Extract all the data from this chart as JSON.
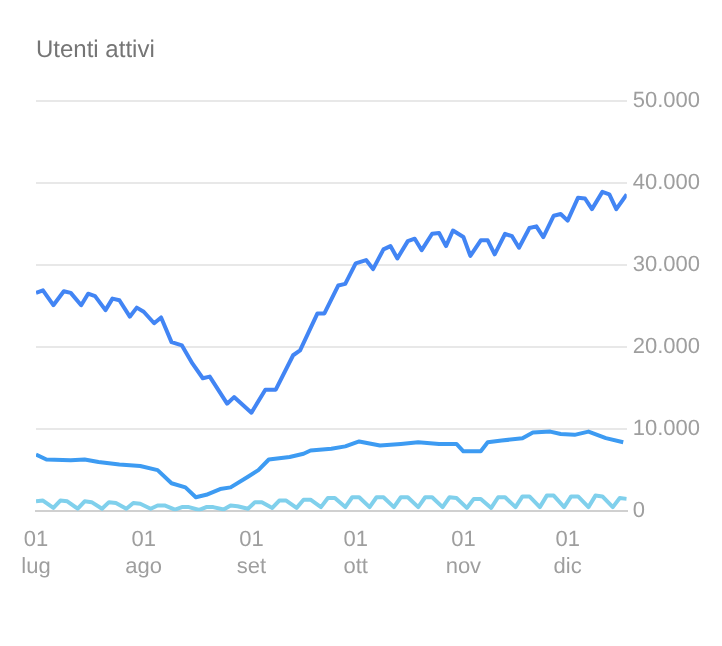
{
  "chart_data": {
    "type": "line",
    "title": "Utenti attivi",
    "xlim": [
      "--07-01",
      "--12-18"
    ],
    "xticks": [
      {
        "value": "--07-01",
        "label": "01\nlug"
      },
      {
        "value": "--08-01",
        "label": "01\nago"
      },
      {
        "value": "--09-01",
        "label": "01\nset"
      },
      {
        "value": "--10-01",
        "label": "01\nott"
      },
      {
        "value": "--11-01",
        "label": "01\nnov"
      },
      {
        "value": "--12-01",
        "label": "01\ndic"
      }
    ],
    "ylim": [
      0,
      50000
    ],
    "yticks": [
      {
        "value": 0,
        "label": "0"
      },
      {
        "value": 10000,
        "label": "10.000"
      },
      {
        "value": 20000,
        "label": "20.000"
      },
      {
        "value": 30000,
        "label": "30.000"
      },
      {
        "value": 40000,
        "label": "40.000"
      },
      {
        "value": 50000,
        "label": "50.000"
      }
    ],
    "grid": "y",
    "legend": false,
    "marker": "none",
    "line_style": "solid",
    "series": [
      {
        "color": "#4285f4",
        "x": [
          "--07-01",
          "--07-03",
          "--07-06",
          "--07-09",
          "--07-11",
          "--07-14",
          "--07-16",
          "--07-18",
          "--07-21",
          "--07-23",
          "--07-25",
          "--07-28",
          "--07-30",
          "--08-01",
          "--08-04",
          "--08-06",
          "--08-09",
          "--08-12",
          "--08-15",
          "--08-18",
          "--08-20",
          "--08-25",
          "--08-27",
          "--09-01",
          "--09-05",
          "--09-08",
          "--09-13",
          "--09-15",
          "--09-20",
          "--09-22",
          "--09-26",
          "--09-28",
          "--10-01",
          "--10-04",
          "--10-06",
          "--10-09",
          "--10-11",
          "--10-13",
          "--10-16",
          "--10-18",
          "--10-20",
          "--10-23",
          "--10-25",
          "--10-27",
          "--10-29",
          "--11-01",
          "--11-03",
          "--11-06",
          "--11-08",
          "--11-10",
          "--11-13",
          "--11-15",
          "--11-17",
          "--11-20",
          "--11-22",
          "--11-24",
          "--11-27",
          "--11-29",
          "--12-01",
          "--12-04",
          "--12-06",
          "--12-08",
          "--12-11",
          "--12-13",
          "--12-15",
          "--12-18"
        ],
        "values": [
          26600,
          26900,
          25100,
          26800,
          26600,
          25100,
          26500,
          26200,
          24500,
          25900,
          25700,
          23700,
          24800,
          24300,
          22900,
          23600,
          20600,
          20200,
          18000,
          16200,
          16400,
          13100,
          13900,
          12000,
          14800,
          14800,
          19000,
          19600,
          24100,
          24100,
          27500,
          27700,
          30200,
          30600,
          29500,
          31900,
          32300,
          30800,
          32900,
          33200,
          31800,
          33800,
          33900,
          32300,
          34200,
          33400,
          31100,
          33000,
          33000,
          31300,
          33800,
          33500,
          32100,
          34500,
          34700,
          33400,
          36000,
          36200,
          35400,
          38200,
          38100,
          36800,
          38900,
          38600,
          36800,
          38600
        ]
      },
      {
        "color": "#3d9bf2",
        "x": [
          "--07-01",
          "--07-04",
          "--07-11",
          "--07-15",
          "--07-19",
          "--07-25",
          "--07-31",
          "--08-05",
          "--08-09",
          "--08-13",
          "--08-16",
          "--08-19",
          "--08-23",
          "--08-26",
          "--08-31",
          "--09-03",
          "--09-06",
          "--09-12",
          "--09-16",
          "--09-18",
          "--09-24",
          "--09-28",
          "--10-02",
          "--10-08",
          "--10-14",
          "--10-19",
          "--10-25",
          "--10-30",
          "--11-01",
          "--11-06",
          "--11-08",
          "--11-12",
          "--11-18",
          "--11-21",
          "--11-26",
          "--11-29",
          "--12-03",
          "--12-07",
          "--12-12",
          "--12-17"
        ],
        "values": [
          6900,
          6300,
          6200,
          6300,
          6000,
          5700,
          5500,
          5000,
          3400,
          2900,
          1700,
          2000,
          2700,
          2900,
          4200,
          5000,
          6300,
          6600,
          7000,
          7400,
          7600,
          7900,
          8500,
          8000,
          8200,
          8400,
          8200,
          8200,
          7300,
          7300,
          8400,
          8600,
          8900,
          9600,
          9700,
          9400,
          9300,
          9700,
          8900,
          8400
        ]
      },
      {
        "color": "#80d0ec",
        "x": [
          "--07-01",
          "--07-03",
          "--07-06",
          "--07-08",
          "--07-10",
          "--07-13",
          "--07-15",
          "--07-17",
          "--07-20",
          "--07-22",
          "--07-24",
          "--07-27",
          "--07-29",
          "--07-31",
          "--08-03",
          "--08-05",
          "--08-07",
          "--08-10",
          "--08-12",
          "--08-14",
          "--08-17",
          "--08-19",
          "--08-21",
          "--08-24",
          "--08-26",
          "--08-28",
          "--08-31",
          "--09-02",
          "--09-04",
          "--09-07",
          "--09-09",
          "--09-11",
          "--09-14",
          "--09-16",
          "--09-18",
          "--09-21",
          "--09-23",
          "--09-25",
          "--09-28",
          "--09-30",
          "--10-02",
          "--10-05",
          "--10-07",
          "--10-09",
          "--10-12",
          "--10-14",
          "--10-16",
          "--10-19",
          "--10-21",
          "--10-23",
          "--10-26",
          "--10-28",
          "--10-30",
          "--11-02",
          "--11-04",
          "--11-06",
          "--11-09",
          "--11-11",
          "--11-13",
          "--11-16",
          "--11-18",
          "--11-20",
          "--11-23",
          "--11-25",
          "--11-27",
          "--11-30",
          "--12-02",
          "--12-04",
          "--12-07",
          "--12-09",
          "--12-11",
          "--12-14",
          "--12-16",
          "--12-18"
        ],
        "values": [
          1200,
          1300,
          400,
          1300,
          1200,
          300,
          1200,
          1100,
          300,
          1100,
          1000,
          300,
          1000,
          900,
          300,
          700,
          700,
          200,
          500,
          500,
          150,
          500,
          500,
          200,
          700,
          600,
          300,
          1100,
          1100,
          400,
          1300,
          1300,
          400,
          1400,
          1400,
          500,
          1600,
          1600,
          500,
          1700,
          1700,
          500,
          1700,
          1700,
          500,
          1700,
          1700,
          500,
          1700,
          1700,
          500,
          1700,
          1600,
          400,
          1500,
          1500,
          400,
          1700,
          1700,
          500,
          1800,
          1800,
          500,
          1900,
          1900,
          500,
          1800,
          1800,
          500,
          1900,
          1800,
          500,
          1600,
          1500
        ]
      }
    ]
  }
}
